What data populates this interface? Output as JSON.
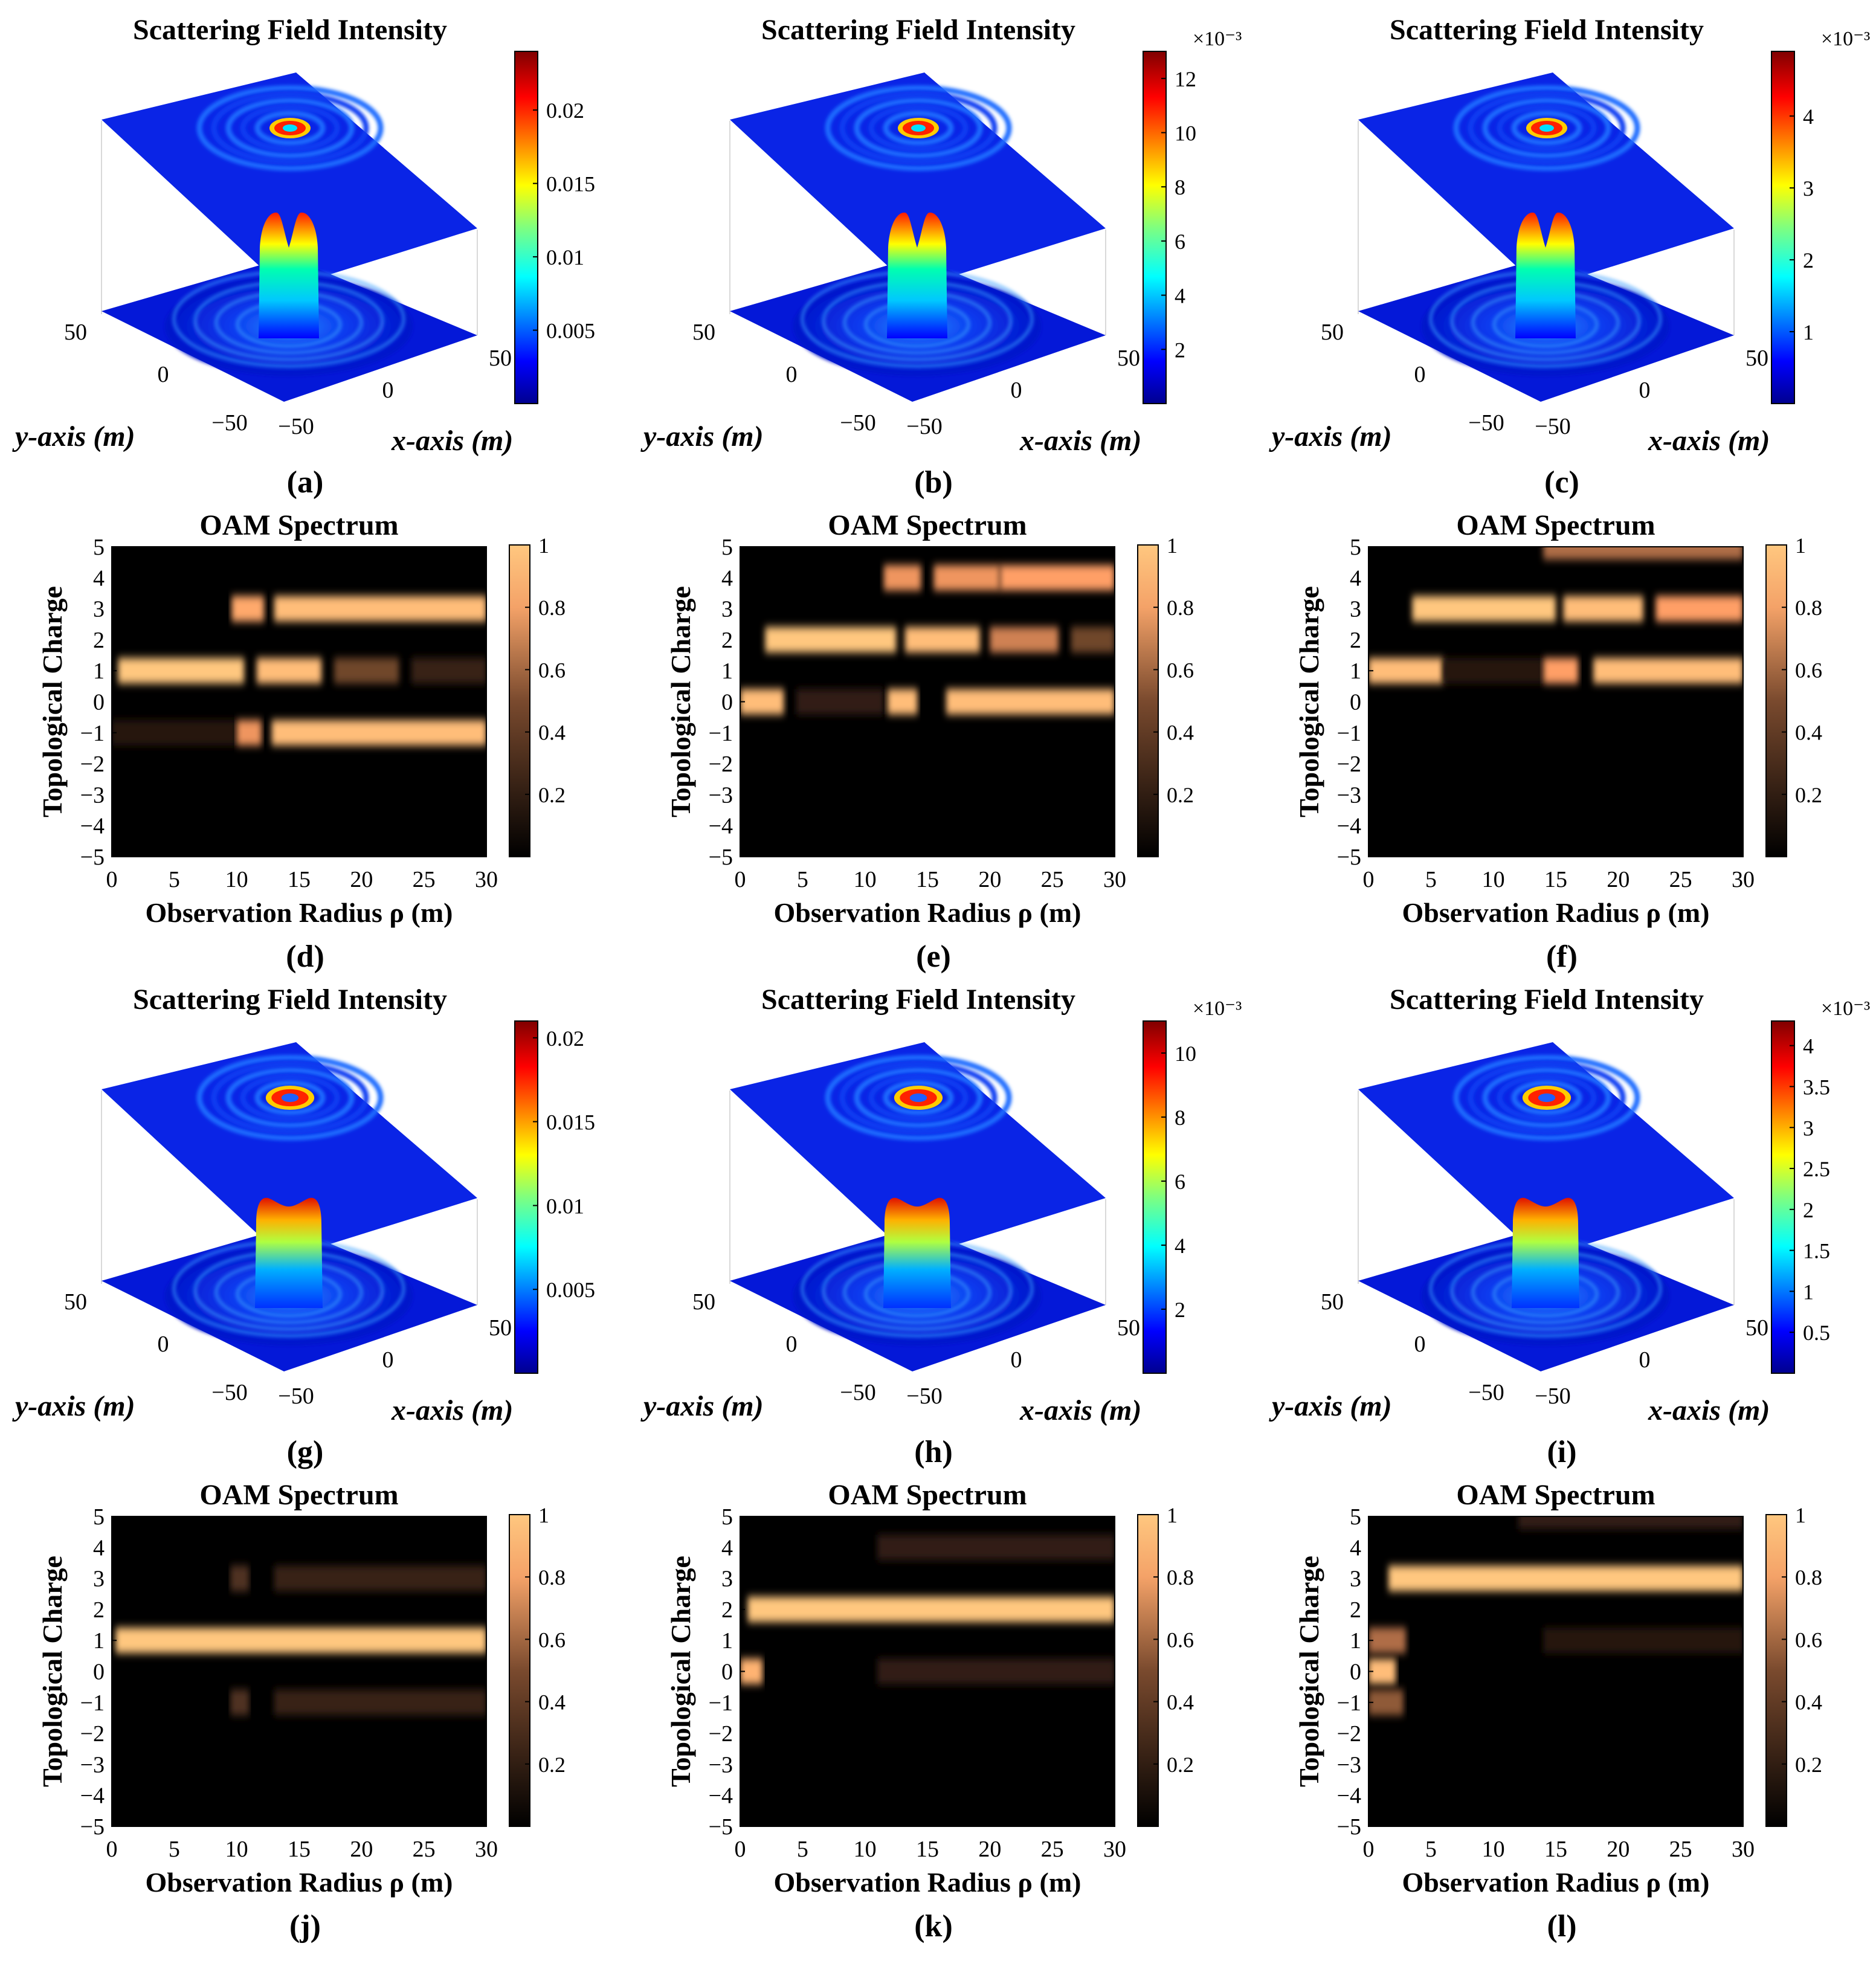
{
  "panel_labels": [
    "(a)",
    "(b)",
    "(c)",
    "(d)",
    "(e)",
    "(f)",
    "(g)",
    "(h)",
    "(i)",
    "(j)",
    "(k)",
    "(l)"
  ],
  "chart_data": [
    {
      "panel": "a",
      "type": "surface",
      "title": "Scattering Field Intensity",
      "xlabel": "x-axis (m)",
      "ylabel": "y-axis (m)",
      "x_range": [
        -50,
        50
      ],
      "y_range": [
        -50,
        50
      ],
      "x_ticks": [
        "0",
        "50",
        "−50"
      ],
      "y_ticks": [
        "50",
        "0",
        "−50"
      ],
      "peak_profile": "split",
      "ring_count": 5,
      "colorbar": {
        "range": [
          0,
          0.024
        ],
        "ticks": [
          0.005,
          0.01,
          0.015,
          0.02
        ],
        "tick_labels": [
          "0.005",
          "0.01",
          "0.015",
          "0.02"
        ],
        "exponent": ""
      }
    },
    {
      "panel": "b",
      "type": "surface",
      "title": "Scattering Field Intensity",
      "xlabel": "x-axis (m)",
      "ylabel": "y-axis (m)",
      "x_range": [
        -50,
        50
      ],
      "y_range": [
        -50,
        50
      ],
      "x_ticks": [
        "0",
        "50",
        "−50"
      ],
      "y_ticks": [
        "50",
        "0",
        "−50"
      ],
      "peak_profile": "split",
      "ring_count": 5,
      "colorbar": {
        "range": [
          0,
          13
        ],
        "ticks": [
          2,
          4,
          6,
          8,
          10,
          12
        ],
        "tick_labels": [
          "2",
          "4",
          "6",
          "8",
          "10",
          "12"
        ],
        "exponent": "×10⁻³"
      }
    },
    {
      "panel": "c",
      "type": "surface",
      "title": "Scattering Field Intensity",
      "xlabel": "x-axis (m)",
      "ylabel": "y-axis (m)",
      "x_range": [
        -50,
        50
      ],
      "y_range": [
        -50,
        50
      ],
      "x_ticks": [
        "0",
        "50",
        "−50"
      ],
      "y_ticks": [
        "50",
        "0",
        "−50"
      ],
      "peak_profile": "split",
      "ring_count": 5,
      "colorbar": {
        "range": [
          0,
          4.9
        ],
        "ticks": [
          1,
          2,
          3,
          4
        ],
        "tick_labels": [
          "1",
          "2",
          "3",
          "4"
        ],
        "exponent": "×10⁻³"
      }
    },
    {
      "panel": "d",
      "type": "heatmap",
      "title": "OAM Spectrum",
      "xlabel": "Observation Radius ρ (m)",
      "ylabel": "Topological Charge",
      "x_range": [
        0,
        30
      ],
      "x_ticks": [
        0,
        5,
        10,
        15,
        20,
        25,
        30
      ],
      "y_range": [
        -5,
        5
      ],
      "y_ticks": [
        -5,
        -4,
        -3,
        -2,
        -1,
        0,
        1,
        2,
        3,
        4,
        5
      ],
      "bands": [
        {
          "charge": 1,
          "segments": [
            [
              0.5,
              10.6,
              1.0
            ],
            [
              11.6,
              16.8,
              0.95
            ],
            [
              17.8,
              23,
              0.35
            ],
            [
              24,
              30,
              0.18
            ]
          ]
        },
        {
          "charge": 3,
          "segments": [
            [
              9.6,
              12.2,
              0.85
            ],
            [
              13,
              30,
              0.95
            ]
          ]
        },
        {
          "charge": -1,
          "segments": [
            [
              0,
              10,
              0.12
            ],
            [
              10,
              12,
              0.75
            ],
            [
              12.8,
              30,
              0.95
            ]
          ]
        }
      ],
      "colorbar": {
        "range": [
          0,
          1
        ],
        "ticks": [
          0.2,
          0.4,
          0.6,
          0.8,
          1
        ],
        "tick_labels": [
          "0.2",
          "0.4",
          "0.6",
          "0.8",
          "1"
        ]
      }
    },
    {
      "panel": "e",
      "type": "heatmap",
      "title": "OAM Spectrum",
      "xlabel": "Observation Radius ρ (m)",
      "ylabel": "Topological Charge",
      "x_range": [
        0,
        30
      ],
      "x_ticks": [
        0,
        5,
        10,
        15,
        20,
        25,
        30
      ],
      "y_range": [
        -5,
        5
      ],
      "y_ticks": [
        -5,
        -4,
        -3,
        -2,
        -1,
        0,
        1,
        2,
        3,
        4,
        5
      ],
      "bands": [
        {
          "charge": 0,
          "segments": [
            [
              0,
              3.5,
              0.95
            ],
            [
              4.5,
              11.5,
              0.15
            ],
            [
              11.8,
              14.2,
              0.95
            ],
            [
              16.5,
              30,
              0.95
            ]
          ]
        },
        {
          "charge": 2,
          "segments": [
            [
              2,
              12.5,
              1.0
            ],
            [
              13.2,
              19.2,
              0.95
            ],
            [
              20,
              25.5,
              0.65
            ],
            [
              26.5,
              30,
              0.35
            ]
          ]
        },
        {
          "charge": 4,
          "segments": [
            [
              11.5,
              14.5,
              0.75
            ],
            [
              15.5,
              20.8,
              0.75
            ],
            [
              20.8,
              30,
              0.8
            ]
          ]
        }
      ],
      "colorbar": {
        "range": [
          0,
          1
        ],
        "ticks": [
          0.2,
          0.4,
          0.6,
          0.8,
          1
        ],
        "tick_labels": [
          "0.2",
          "0.4",
          "0.6",
          "0.8",
          "1"
        ]
      }
    },
    {
      "panel": "f",
      "type": "heatmap",
      "title": "OAM Spectrum",
      "xlabel": "Observation Radius ρ (m)",
      "ylabel": "Topological Charge",
      "x_range": [
        0,
        30
      ],
      "x_ticks": [
        0,
        5,
        10,
        15,
        20,
        25,
        30
      ],
      "y_range": [
        -5,
        5
      ],
      "y_ticks": [
        -5,
        -4,
        -3,
        -2,
        -1,
        0,
        1,
        2,
        3,
        4,
        5
      ],
      "bands": [
        {
          "charge": 1,
          "segments": [
            [
              0,
              6,
              0.95
            ],
            [
              6,
              14,
              0.12
            ],
            [
              14,
              16.8,
              0.8
            ],
            [
              18,
              30,
              0.95
            ]
          ]
        },
        {
          "charge": 3,
          "segments": [
            [
              3.5,
              15,
              1.0
            ],
            [
              15.6,
              22,
              0.95
            ],
            [
              23,
              30,
              0.8
            ]
          ]
        },
        {
          "charge": 5,
          "segments": [
            [
              14,
              30,
              0.55
            ]
          ]
        }
      ],
      "colorbar": {
        "range": [
          0,
          1
        ],
        "ticks": [
          0.2,
          0.4,
          0.6,
          0.8,
          1
        ],
        "tick_labels": [
          "0.2",
          "0.4",
          "0.6",
          "0.8",
          "1"
        ]
      }
    },
    {
      "panel": "g",
      "type": "surface",
      "title": "Scattering Field Intensity",
      "xlabel": "x-axis (m)",
      "ylabel": "y-axis (m)",
      "x_range": [
        -50,
        50
      ],
      "y_range": [
        -50,
        50
      ],
      "x_ticks": [
        "0",
        "50",
        "−50"
      ],
      "y_ticks": [
        "50",
        "0",
        "−50"
      ],
      "peak_profile": "plateau",
      "ring_count": 5,
      "colorbar": {
        "range": [
          0,
          0.021
        ],
        "ticks": [
          0.005,
          0.01,
          0.015,
          0.02
        ],
        "tick_labels": [
          "0.005",
          "0.01",
          "0.015",
          "0.02"
        ],
        "exponent": ""
      }
    },
    {
      "panel": "h",
      "type": "surface",
      "title": "Scattering Field Intensity",
      "xlabel": "x-axis (m)",
      "ylabel": "y-axis (m)",
      "x_range": [
        -50,
        50
      ],
      "y_range": [
        -50,
        50
      ],
      "x_ticks": [
        "0",
        "50",
        "−50"
      ],
      "y_ticks": [
        "50",
        "0",
        "−50"
      ],
      "peak_profile": "plateau",
      "ring_count": 5,
      "colorbar": {
        "range": [
          0,
          11
        ],
        "ticks": [
          2,
          4,
          6,
          8,
          10
        ],
        "tick_labels": [
          "2",
          "4",
          "6",
          "8",
          "10"
        ],
        "exponent": "×10⁻³"
      }
    },
    {
      "panel": "i",
      "type": "surface",
      "title": "Scattering Field Intensity",
      "xlabel": "x-axis (m)",
      "ylabel": "y-axis (m)",
      "x_range": [
        -50,
        50
      ],
      "y_range": [
        -50,
        50
      ],
      "x_ticks": [
        "0",
        "50",
        "−50"
      ],
      "y_ticks": [
        "50",
        "0",
        "−50"
      ],
      "peak_profile": "plateau",
      "ring_count": 5,
      "colorbar": {
        "range": [
          0,
          4.3
        ],
        "ticks": [
          0.5,
          1,
          1.5,
          2,
          2.5,
          3,
          3.5,
          4
        ],
        "tick_labels": [
          "0.5",
          "1",
          "1.5",
          "2",
          "2.5",
          "3",
          "3.5",
          "4"
        ],
        "exponent": "×10⁻³"
      }
    },
    {
      "panel": "j",
      "type": "heatmap",
      "title": "OAM Spectrum",
      "xlabel": "Observation Radius ρ (m)",
      "ylabel": "Topological Charge",
      "x_range": [
        0,
        30
      ],
      "x_ticks": [
        0,
        5,
        10,
        15,
        20,
        25,
        30
      ],
      "y_range": [
        -5,
        5
      ],
      "y_ticks": [
        -5,
        -4,
        -3,
        -2,
        -1,
        0,
        1,
        2,
        3,
        4,
        5
      ],
      "bands": [
        {
          "charge": 1,
          "segments": [
            [
              0.3,
              30,
              1.0
            ]
          ]
        },
        {
          "charge": 3,
          "segments": [
            [
              9.5,
              11,
              0.25
            ],
            [
              13,
              30,
              0.18
            ]
          ]
        },
        {
          "charge": -1,
          "segments": [
            [
              9.5,
              11,
              0.25
            ],
            [
              13,
              30,
              0.18
            ]
          ]
        }
      ],
      "colorbar": {
        "range": [
          0,
          1
        ],
        "ticks": [
          0.2,
          0.4,
          0.6,
          0.8,
          1
        ],
        "tick_labels": [
          "0.2",
          "0.4",
          "0.6",
          "0.8",
          "1"
        ]
      }
    },
    {
      "panel": "k",
      "type": "heatmap",
      "title": "OAM Spectrum",
      "xlabel": "Observation Radius ρ (m)",
      "ylabel": "Topological Charge",
      "x_range": [
        0,
        30
      ],
      "x_ticks": [
        0,
        5,
        10,
        15,
        20,
        25,
        30
      ],
      "y_range": [
        -5,
        5
      ],
      "y_ticks": [
        -5,
        -4,
        -3,
        -2,
        -1,
        0,
        1,
        2,
        3,
        4,
        5
      ],
      "bands": [
        {
          "charge": 2,
          "segments": [
            [
              0.6,
              30,
              1.0
            ]
          ]
        },
        {
          "charge": 0,
          "segments": [
            [
              0,
              1.8,
              0.9
            ],
            [
              11,
              30,
              0.15
            ]
          ]
        },
        {
          "charge": 4,
          "segments": [
            [
              11,
              30,
              0.15
            ]
          ]
        }
      ],
      "colorbar": {
        "range": [
          0,
          1
        ],
        "ticks": [
          0.2,
          0.4,
          0.6,
          0.8,
          1
        ],
        "tick_labels": [
          "0.2",
          "0.4",
          "0.6",
          "0.8",
          "1"
        ]
      }
    },
    {
      "panel": "l",
      "type": "heatmap",
      "title": "OAM Spectrum",
      "xlabel": "Observation Radius ρ (m)",
      "ylabel": "Topological Charge",
      "x_range": [
        0,
        30
      ],
      "x_ticks": [
        0,
        5,
        10,
        15,
        20,
        25,
        30
      ],
      "y_range": [
        -5,
        5
      ],
      "y_ticks": [
        -5,
        -4,
        -3,
        -2,
        -1,
        0,
        1,
        2,
        3,
        4,
        5
      ],
      "bands": [
        {
          "charge": 3,
          "segments": [
            [
              1.6,
              30,
              1.0
            ]
          ]
        },
        {
          "charge": 0,
          "segments": [
            [
              0,
              2.2,
              0.95
            ]
          ]
        },
        {
          "charge": 1,
          "segments": [
            [
              0,
              3,
              0.55
            ],
            [
              14,
              30,
              0.12
            ]
          ]
        },
        {
          "charge": -1,
          "segments": [
            [
              0,
              2.8,
              0.45
            ]
          ]
        },
        {
          "charge": 5,
          "segments": [
            [
              12,
              30,
              0.15
            ]
          ]
        }
      ],
      "colorbar": {
        "range": [
          0,
          1
        ],
        "ticks": [
          0.2,
          0.4,
          0.6,
          0.8,
          1
        ],
        "tick_labels": [
          "0.2",
          "0.4",
          "0.6",
          "0.8",
          "1"
        ]
      }
    }
  ]
}
